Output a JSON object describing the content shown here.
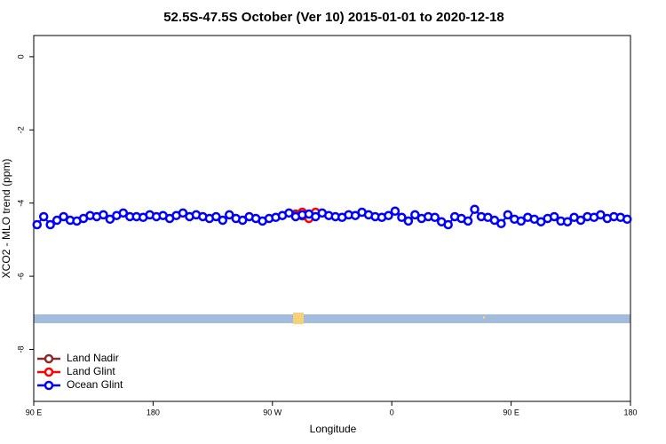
{
  "chart_data": {
    "type": "line",
    "title": "52.5S-47.5S October (Ver 10)   2015-01-01 to 2020-12-18",
    "x_label": "Longitude",
    "y_label": "XCO2 - MLO trend (ppm)",
    "xlim": [
      90,
      540
    ],
    "xticks": [
      {
        "value": 90,
        "label": "90 E"
      },
      180,
      {
        "value": 270,
        "label": "90 W"
      },
      {
        "value": 360,
        "label": "0"
      },
      {
        "value": 450,
        "label": "90 E"
      },
      {
        "value": 540,
        "label": "180"
      }
    ],
    "ylim": [
      -9.42,
      0.58
    ],
    "yticks": [
      -8,
      -6,
      -4,
      -2,
      0
    ],
    "legend": "bottom-left",
    "series": [
      {
        "name": "Land Nadir",
        "color": "#8b2a2a",
        "x": [
          287.5,
          292.5
        ],
        "values": [
          -4.3,
          -4.35
        ]
      },
      {
        "name": "Land Glint",
        "color": "#ff0000",
        "x": [
          287.5,
          292.5,
          297.5,
          302.5
        ],
        "values": [
          -4.35,
          -4.25,
          -4.42,
          -4.25
        ]
      },
      {
        "name": "Ocean Glint",
        "color": "#0000ff",
        "x": [
          92.5,
          97.5,
          102.5,
          107.5,
          112.5,
          117.5,
          122.5,
          127.5,
          132.5,
          137.5,
          142.5,
          147.5,
          152.5,
          157.5,
          162.5,
          167.5,
          172.5,
          177.5,
          182.5,
          187.5,
          192.5,
          197.5,
          202.5,
          207.5,
          212.5,
          217.5,
          222.5,
          227.5,
          232.5,
          237.5,
          242.5,
          247.5,
          252.5,
          257.5,
          262.5,
          267.5,
          272.5,
          277.5,
          282.5,
          287.5,
          292.5,
          297.5,
          302.5,
          307.5,
          312.5,
          317.5,
          322.5,
          327.5,
          332.5,
          337.5,
          342.5,
          347.5,
          352.5,
          357.5,
          362.5,
          367.5,
          372.5,
          377.5,
          382.5,
          387.5,
          392.5,
          397.5,
          402.5,
          407.5,
          412.5,
          417.5,
          422.5,
          427.5,
          432.5,
          437.5,
          442.5,
          447.5,
          452.5,
          457.5,
          462.5,
          467.5,
          472.5,
          477.5,
          482.5,
          487.5,
          492.5,
          497.5,
          502.5,
          507.5,
          512.5,
          517.5,
          522.5,
          527.5,
          532.5,
          537.5
        ],
        "values": [
          -4.59,
          -4.37,
          -4.59,
          -4.47,
          -4.37,
          -4.47,
          -4.49,
          -4.42,
          -4.34,
          -4.37,
          -4.32,
          -4.44,
          -4.34,
          -4.27,
          -4.37,
          -4.37,
          -4.39,
          -4.32,
          -4.37,
          -4.34,
          -4.42,
          -4.34,
          -4.27,
          -4.37,
          -4.32,
          -4.37,
          -4.42,
          -4.37,
          -4.47,
          -4.32,
          -4.42,
          -4.47,
          -4.37,
          -4.42,
          -4.49,
          -4.42,
          -4.39,
          -4.34,
          -4.27,
          -4.37,
          -4.32,
          -4.3,
          -4.37,
          -4.27,
          -4.34,
          -4.37,
          -4.39,
          -4.32,
          -4.34,
          -4.25,
          -4.32,
          -4.37,
          -4.39,
          -4.34,
          -4.22,
          -4.39,
          -4.49,
          -4.32,
          -4.42,
          -4.37,
          -4.39,
          -4.51,
          -4.59,
          -4.37,
          -4.42,
          -4.49,
          -4.17,
          -4.37,
          -4.39,
          -4.47,
          -4.56,
          -4.32,
          -4.44,
          -4.49,
          -4.39,
          -4.44,
          -4.51,
          -4.42,
          -4.37,
          -4.49,
          -4.51,
          -4.39,
          -4.47,
          -4.37,
          -4.39,
          -4.32,
          -4.42,
          -4.37,
          -4.39,
          -4.44
        ]
      }
    ]
  }
}
